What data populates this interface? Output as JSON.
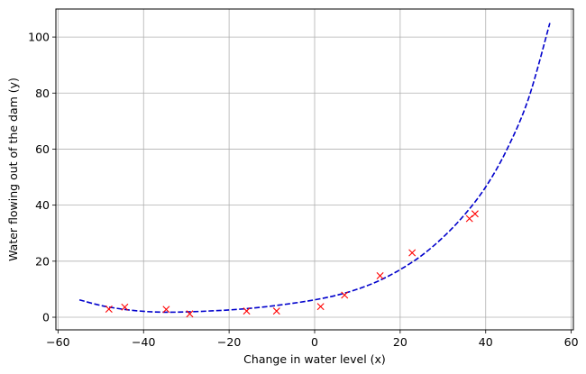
{
  "chart_data": {
    "type": "scatter",
    "title": "",
    "xlabel": "Change in water level (x)",
    "ylabel": "Water flowing out of the dam (y)",
    "xlim": [
      -60.5,
      60.5
    ],
    "ylim": [
      -4.5,
      110
    ],
    "xticks": [
      -60,
      -40,
      -20,
      0,
      20,
      40,
      60
    ],
    "xtick_labels": [
      "−60",
      "−40",
      "−20",
      "0",
      "20",
      "40",
      "60"
    ],
    "yticks": [
      0,
      20,
      40,
      60,
      80,
      100
    ],
    "ytick_labels": [
      "0",
      "20",
      "40",
      "60",
      "80",
      "100"
    ],
    "grid": true,
    "legend": "none",
    "series": [
      {
        "kind": "scatter",
        "marker": "x",
        "color": "#ff0000",
        "points": [
          {
            "x": -48.1,
            "y": 2.9
          },
          {
            "x": -44.4,
            "y": 3.6
          },
          {
            "x": -34.7,
            "y": 2.8
          },
          {
            "x": -29.2,
            "y": 1.2
          },
          {
            "x": -15.9,
            "y": 2.2
          },
          {
            "x": -8.9,
            "y": 2.2
          },
          {
            "x": 1.4,
            "y": 3.8
          },
          {
            "x": 7.0,
            "y": 7.9
          },
          {
            "x": 15.3,
            "y": 14.8
          },
          {
            "x": 22.8,
            "y": 23.0
          },
          {
            "x": 36.2,
            "y": 35.2
          },
          {
            "x": 37.5,
            "y": 36.9
          }
        ]
      },
      {
        "kind": "line",
        "style": "dashed",
        "color": "#0000cc",
        "points": [
          {
            "x": -55,
            "y": 6.2
          },
          {
            "x": -50,
            "y": 4.2
          },
          {
            "x": -45,
            "y": 2.9
          },
          {
            "x": -40,
            "y": 2.1
          },
          {
            "x": -35,
            "y": 1.8
          },
          {
            "x": -30,
            "y": 1.9
          },
          {
            "x": -25,
            "y": 2.2
          },
          {
            "x": -20,
            "y": 2.6
          },
          {
            "x": -15,
            "y": 3.2
          },
          {
            "x": -10,
            "y": 4.0
          },
          {
            "x": -5,
            "y": 5.0
          },
          {
            "x": 0,
            "y": 6.2
          },
          {
            "x": 5,
            "y": 7.8
          },
          {
            "x": 10,
            "y": 10.0
          },
          {
            "x": 15,
            "y": 13.0
          },
          {
            "x": 20,
            "y": 17.0
          },
          {
            "x": 25,
            "y": 22.0
          },
          {
            "x": 30,
            "y": 28.5
          },
          {
            "x": 35,
            "y": 36.5
          },
          {
            "x": 40,
            "y": 46.5
          },
          {
            "x": 45,
            "y": 60.0
          },
          {
            "x": 50,
            "y": 78.0
          },
          {
            "x": 55,
            "y": 105.0
          }
        ]
      }
    ]
  }
}
